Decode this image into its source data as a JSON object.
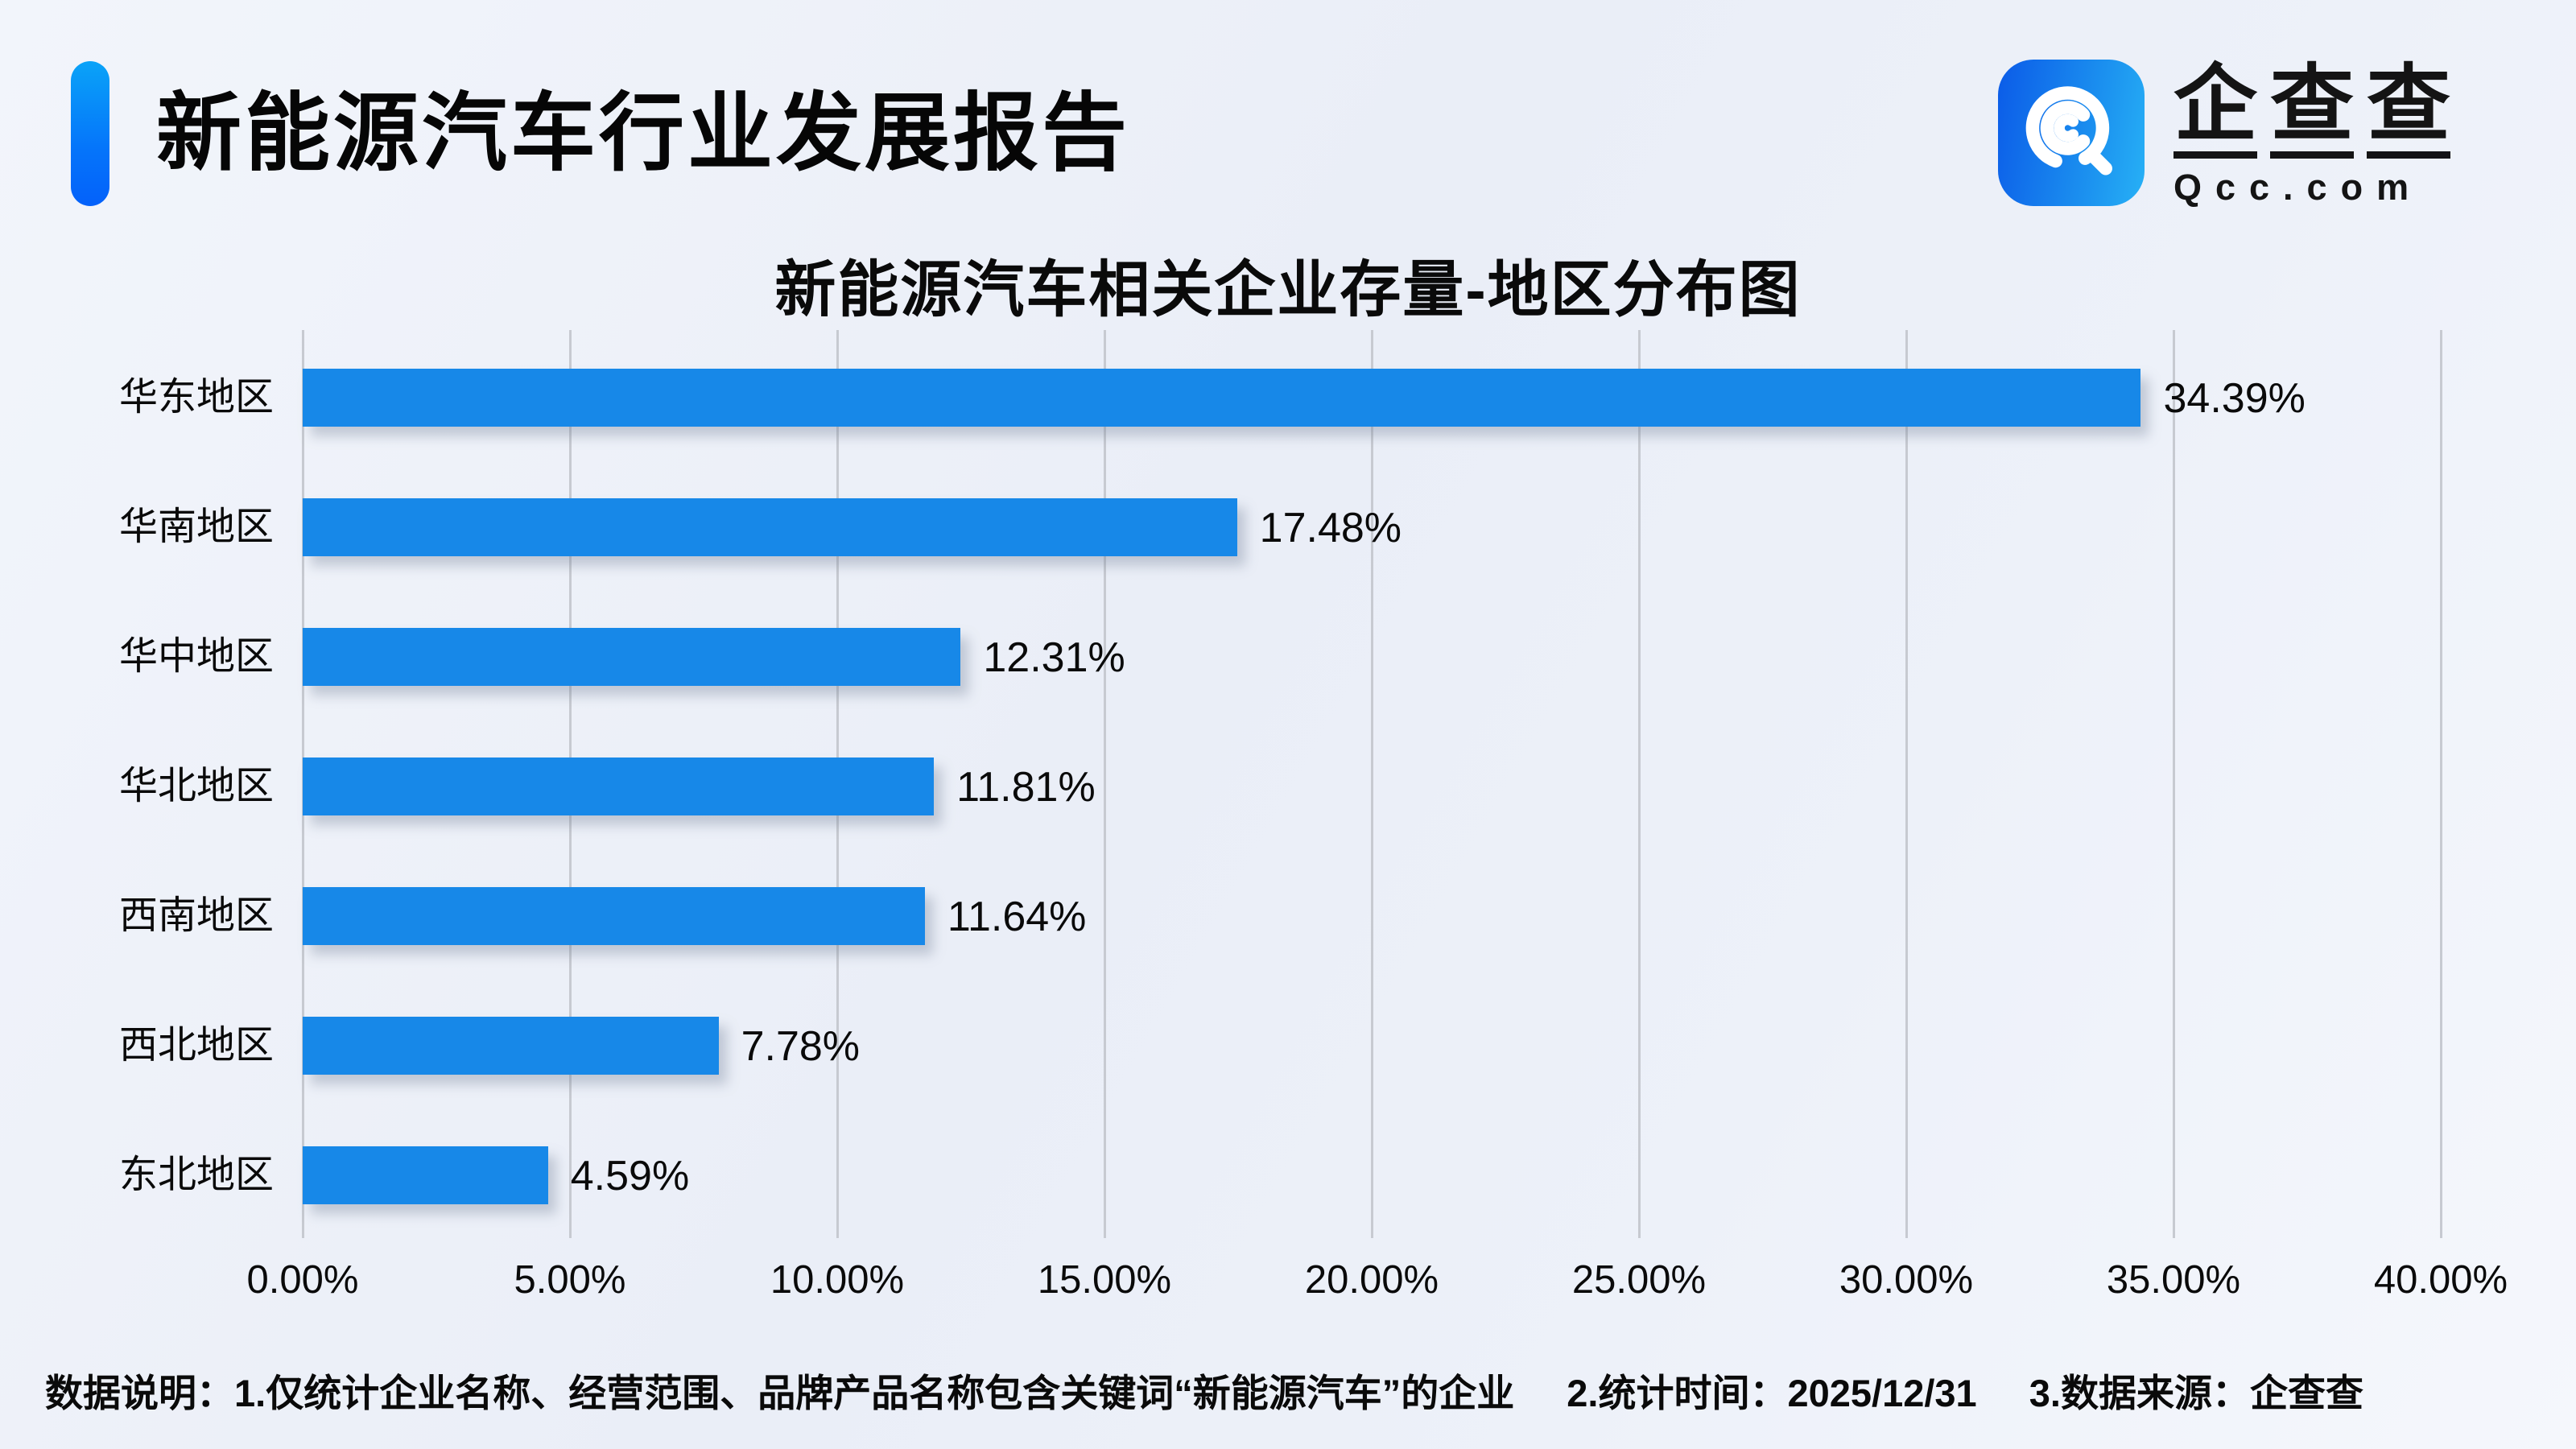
{
  "header": {
    "title": "新能源汽车行业发展报告"
  },
  "logo": {
    "brand_chars": [
      "企",
      "查",
      "查"
    ],
    "domain": "Qcc.com"
  },
  "chart_data": {
    "type": "bar",
    "orientation": "horizontal",
    "title": "新能源汽车相关企业存量-地区分布图",
    "categories": [
      "华东地区",
      "华南地区",
      "华中地区",
      "华北地区",
      "西南地区",
      "西北地区",
      "东北地区"
    ],
    "values": [
      34.39,
      17.48,
      12.31,
      11.81,
      11.64,
      7.78,
      4.59
    ],
    "value_labels": [
      "34.39%",
      "17.48%",
      "12.31%",
      "11.81%",
      "11.64%",
      "7.78%",
      "4.59%"
    ],
    "x_ticks": [
      "0.00%",
      "5.00%",
      "10.00%",
      "15.00%",
      "20.00%",
      "25.00%",
      "30.00%",
      "35.00%",
      "40.00%"
    ],
    "xlim": [
      0,
      40
    ],
    "grid": true,
    "legend": false,
    "bar_color": "#1788E8"
  },
  "footer": {
    "parts": [
      "数据说明：1.仅统计企业名称、经营范围、品牌产品名称包含关键词“新能源汽车”的企业",
      "2.统计时间：2025/12/31",
      "3.数据来源：企查查"
    ]
  },
  "colors": {
    "accent_top": "#0AA3F8",
    "accent_bottom": "#0461FA",
    "bar": "#1788E8",
    "gridline": "#C7CAD1",
    "background": "#EEF2F9",
    "text": "#111111",
    "logo_icon_blue": "#1D96F0"
  }
}
